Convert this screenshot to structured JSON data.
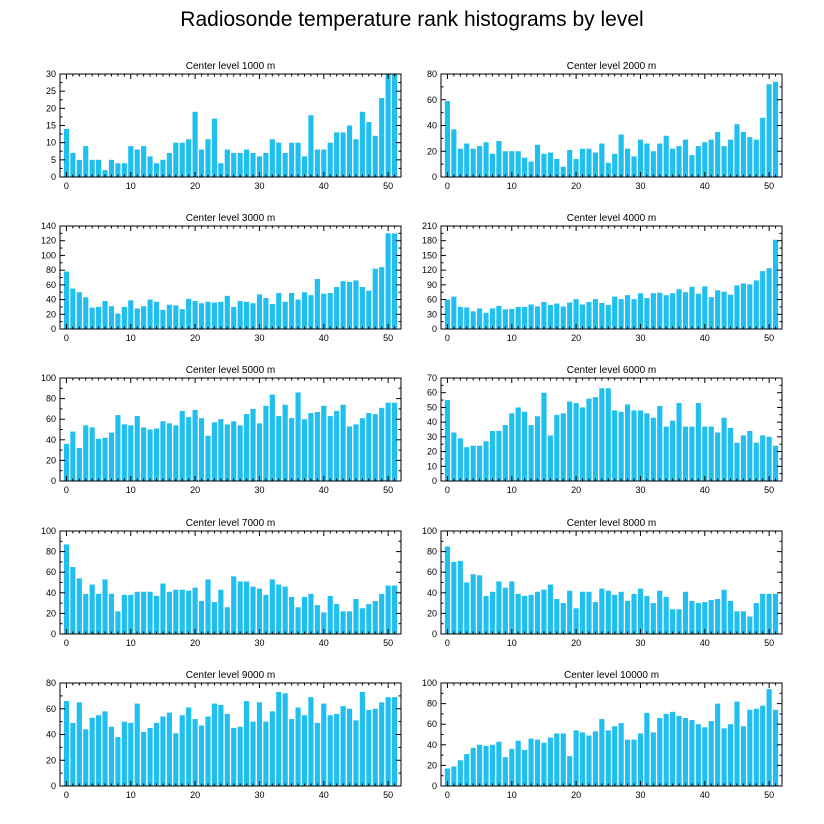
{
  "figure_title": "Radiosonde temperature rank histograms by level",
  "colors": {
    "bar": "#1fbfef",
    "axis": "#000000",
    "background": "#ffffff"
  },
  "chart_data": [
    {
      "type": "bar",
      "title": "Center level 1000 m",
      "xlabel": "",
      "ylabel": "",
      "xlim": [
        -1,
        52
      ],
      "ylim": [
        0,
        30
      ],
      "xticks": [
        0,
        10,
        20,
        30,
        40,
        50
      ],
      "yticks": [
        0,
        5,
        10,
        15,
        20,
        25,
        30
      ],
      "values": [
        14,
        7,
        5,
        9,
        5,
        5,
        2,
        5,
        4,
        4,
        9,
        8,
        9,
        6,
        4,
        5,
        7,
        10,
        10,
        11,
        19,
        8,
        11,
        17,
        4,
        8,
        7,
        7,
        8,
        7,
        6,
        7,
        11,
        10,
        7,
        10,
        10,
        6,
        18,
        8,
        8,
        10,
        13,
        13,
        15,
        11,
        19,
        16,
        12,
        23,
        30,
        30
      ]
    },
    {
      "type": "bar",
      "title": "Center level 2000 m",
      "xlabel": "",
      "ylabel": "",
      "xlim": [
        -1,
        52
      ],
      "ylim": [
        0,
        80
      ],
      "xticks": [
        0,
        10,
        20,
        30,
        40,
        50
      ],
      "yticks": [
        0,
        20,
        40,
        60,
        80
      ],
      "values": [
        59,
        37,
        22,
        26,
        22,
        24,
        27,
        18,
        28,
        20,
        20,
        20,
        15,
        12,
        25,
        18,
        19,
        14,
        8,
        21,
        14,
        22,
        22,
        19,
        26,
        11,
        18,
        33,
        22,
        16,
        29,
        26,
        20,
        26,
        32,
        22,
        24,
        29,
        17,
        24,
        27,
        29,
        35,
        24,
        29,
        41,
        35,
        31,
        29,
        46,
        72,
        74
      ]
    },
    {
      "type": "bar",
      "title": "Center level 3000 m",
      "xlabel": "",
      "ylabel": "",
      "xlim": [
        -1,
        52
      ],
      "ylim": [
        0,
        140
      ],
      "xticks": [
        0,
        10,
        20,
        30,
        40,
        50
      ],
      "yticks": [
        0,
        20,
        40,
        60,
        80,
        100,
        120,
        140
      ],
      "values": [
        78,
        55,
        50,
        43,
        29,
        30,
        38,
        31,
        21,
        30,
        39,
        28,
        31,
        40,
        37,
        26,
        33,
        32,
        27,
        41,
        38,
        35,
        37,
        36,
        37,
        45,
        30,
        38,
        37,
        35,
        47,
        42,
        34,
        49,
        37,
        49,
        40,
        50,
        46,
        68,
        48,
        49,
        57,
        65,
        64,
        66,
        57,
        52,
        82,
        84,
        130,
        130
      ]
    },
    {
      "type": "bar",
      "title": "Center level 4000 m",
      "xlabel": "",
      "ylabel": "",
      "xlim": [
        -1,
        52
      ],
      "ylim": [
        0,
        210
      ],
      "xticks": [
        0,
        10,
        20,
        30,
        40,
        50
      ],
      "yticks": [
        0,
        30,
        60,
        90,
        120,
        150,
        180,
        210
      ],
      "values": [
        60,
        66,
        45,
        44,
        36,
        42,
        33,
        42,
        47,
        40,
        41,
        45,
        45,
        50,
        46,
        55,
        49,
        52,
        46,
        54,
        61,
        50,
        55,
        61,
        53,
        49,
        66,
        61,
        69,
        61,
        73,
        63,
        73,
        74,
        69,
        73,
        81,
        75,
        86,
        72,
        87,
        65,
        79,
        76,
        70,
        89,
        93,
        91,
        99,
        118,
        124,
        182
      ]
    },
    {
      "type": "bar",
      "title": "Center level 5000 m",
      "xlabel": "",
      "ylabel": "",
      "xlim": [
        -1,
        52
      ],
      "ylim": [
        0,
        100
      ],
      "xticks": [
        0,
        10,
        20,
        30,
        40,
        50
      ],
      "yticks": [
        0,
        20,
        40,
        60,
        80,
        100
      ],
      "values": [
        36,
        48,
        32,
        54,
        52,
        41,
        42,
        47,
        64,
        55,
        54,
        63,
        52,
        50,
        51,
        58,
        56,
        54,
        68,
        62,
        69,
        61,
        44,
        57,
        60,
        55,
        58,
        54,
        65,
        70,
        56,
        73,
        84,
        63,
        74,
        61,
        86,
        60,
        66,
        67,
        73,
        63,
        68,
        74,
        53,
        55,
        61,
        66,
        65,
        71,
        76,
        76
      ]
    },
    {
      "type": "bar",
      "title": "Center level 6000 m",
      "xlabel": "",
      "ylabel": "",
      "xlim": [
        -1,
        52
      ],
      "ylim": [
        0,
        70
      ],
      "xticks": [
        0,
        10,
        20,
        30,
        40,
        50
      ],
      "yticks": [
        0,
        10,
        20,
        30,
        40,
        50,
        60,
        70
      ],
      "values": [
        55,
        33,
        29,
        23,
        24,
        24,
        27,
        34,
        34,
        38,
        46,
        50,
        47,
        38,
        44,
        60,
        31,
        45,
        46,
        54,
        53,
        50,
        56,
        57,
        63,
        63,
        48,
        47,
        52,
        48,
        48,
        46,
        43,
        51,
        37,
        41,
        53,
        37,
        37,
        53,
        37,
        37,
        33,
        43,
        36,
        26,
        31,
        34,
        26,
        31,
        30,
        24
      ]
    },
    {
      "type": "bar",
      "title": "Center level 7000 m",
      "xlabel": "",
      "ylabel": "",
      "xlim": [
        -1,
        52
      ],
      "ylim": [
        0,
        100
      ],
      "xticks": [
        0,
        10,
        20,
        30,
        40,
        50
      ],
      "yticks": [
        0,
        20,
        40,
        60,
        80,
        100
      ],
      "values": [
        87,
        65,
        54,
        39,
        48,
        39,
        53,
        39,
        22,
        38,
        38,
        41,
        41,
        41,
        37,
        49,
        41,
        43,
        43,
        42,
        45,
        32,
        53,
        31,
        43,
        26,
        56,
        51,
        51,
        46,
        44,
        38,
        53,
        48,
        46,
        36,
        26,
        36,
        39,
        28,
        21,
        37,
        29,
        22,
        22,
        34,
        25,
        29,
        32,
        39,
        47,
        47
      ]
    },
    {
      "type": "bar",
      "title": "Center level 8000 m",
      "xlabel": "",
      "ylabel": "",
      "xlim": [
        -1,
        52
      ],
      "ylim": [
        0,
        100
      ],
      "xticks": [
        0,
        10,
        20,
        30,
        40,
        50
      ],
      "yticks": [
        0,
        20,
        40,
        60,
        80,
        100
      ],
      "values": [
        85,
        70,
        71,
        50,
        58,
        57,
        37,
        41,
        51,
        45,
        51,
        39,
        37,
        38,
        41,
        43,
        48,
        34,
        30,
        42,
        25,
        41,
        41,
        31,
        44,
        42,
        38,
        41,
        32,
        39,
        44,
        37,
        30,
        42,
        36,
        24,
        24,
        41,
        32,
        30,
        31,
        33,
        34,
        43,
        32,
        22,
        22,
        17,
        30,
        39,
        39,
        39
      ]
    },
    {
      "type": "bar",
      "title": "Center level 9000 m",
      "xlabel": "",
      "ylabel": "",
      "xlim": [
        -1,
        52
      ],
      "ylim": [
        0,
        80
      ],
      "xticks": [
        0,
        10,
        20,
        30,
        40,
        50
      ],
      "yticks": [
        0,
        20,
        40,
        60,
        80
      ],
      "values": [
        66,
        49,
        65,
        44,
        53,
        55,
        58,
        46,
        38,
        50,
        49,
        64,
        42,
        45,
        49,
        54,
        57,
        41,
        55,
        61,
        52,
        47,
        54,
        64,
        63,
        56,
        45,
        46,
        66,
        50,
        65,
        50,
        58,
        73,
        72,
        52,
        61,
        55,
        69,
        49,
        64,
        55,
        56,
        62,
        60,
        51,
        73,
        59,
        60,
        65,
        69,
        69
      ]
    },
    {
      "type": "bar",
      "title": "Center level 10000 m",
      "xlabel": "",
      "ylabel": "",
      "xlim": [
        -1,
        52
      ],
      "ylim": [
        0,
        100
      ],
      "xticks": [
        0,
        10,
        20,
        30,
        40,
        50
      ],
      "yticks": [
        0,
        20,
        40,
        60,
        80,
        100
      ],
      "values": [
        17,
        19,
        25,
        31,
        37,
        40,
        39,
        40,
        43,
        28,
        36,
        44,
        35,
        46,
        45,
        42,
        47,
        51,
        51,
        29,
        54,
        52,
        49,
        53,
        65,
        54,
        58,
        61,
        45,
        45,
        51,
        71,
        52,
        66,
        70,
        72,
        68,
        66,
        64,
        60,
        57,
        63,
        80,
        56,
        60,
        82,
        58,
        74,
        75,
        78,
        94,
        74
      ]
    }
  ]
}
